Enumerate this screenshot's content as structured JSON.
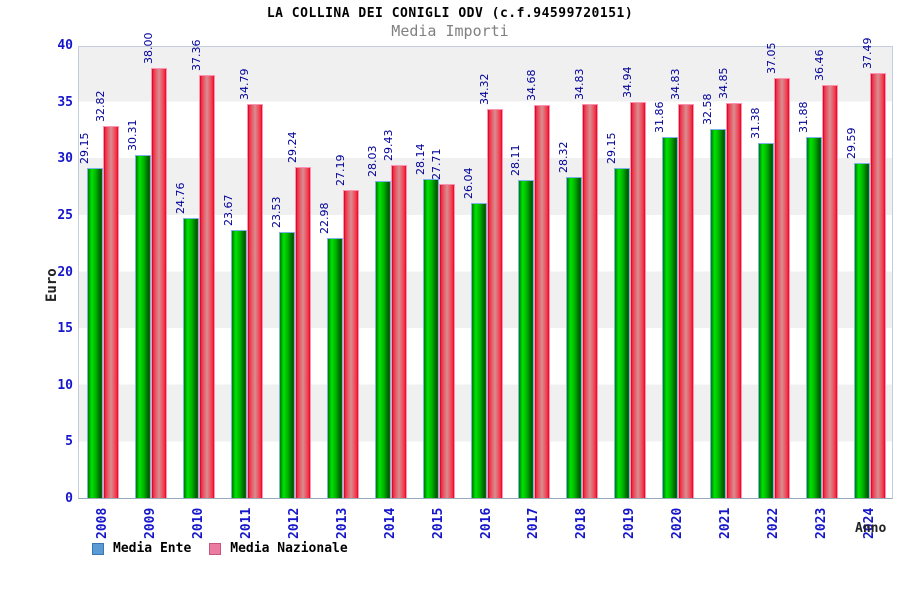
{
  "chart_data": {
    "type": "bar",
    "title": "LA COLLINA DEI CONIGLI ODV (c.f.94599720151)",
    "subtitle": "Media Importi",
    "xlabel": "Anno",
    "ylabel": "Euro",
    "ylim": [
      0,
      40
    ],
    "ytick_step": 5,
    "grid_bands": true,
    "legend_position": "bottom-left",
    "value_label_decimals": 2,
    "categories": [
      "2008",
      "2009",
      "2010",
      "2011",
      "2012",
      "2013",
      "2014",
      "2015",
      "2016",
      "2017",
      "2018",
      "2019",
      "2020",
      "2021",
      "2022",
      "2023",
      "2024"
    ],
    "series": [
      {
        "name": "Media Ente",
        "bar_color_main": "#00b400",
        "legend_swatch_color": "#5b9bd5",
        "values": [
          29.15,
          30.31,
          24.76,
          23.67,
          23.53,
          22.98,
          28.03,
          28.14,
          26.04,
          28.11,
          28.32,
          29.15,
          31.86,
          32.58,
          31.38,
          31.88,
          29.59
        ]
      },
      {
        "name": "Media Nazionale",
        "bar_color_main": "#e8001e",
        "legend_swatch_color": "#ec7ba2",
        "values": [
          32.82,
          38.0,
          37.36,
          34.79,
          29.24,
          27.19,
          29.43,
          27.71,
          34.32,
          34.68,
          34.83,
          34.94,
          34.83,
          34.85,
          37.05,
          36.46,
          37.49
        ]
      }
    ],
    "colors": {
      "value_label": "#000099",
      "axis_tick_label": "#1616cc",
      "subtitle": "#808080",
      "band_gray": "#f0f0f0",
      "band_white": "#ffffff"
    }
  }
}
